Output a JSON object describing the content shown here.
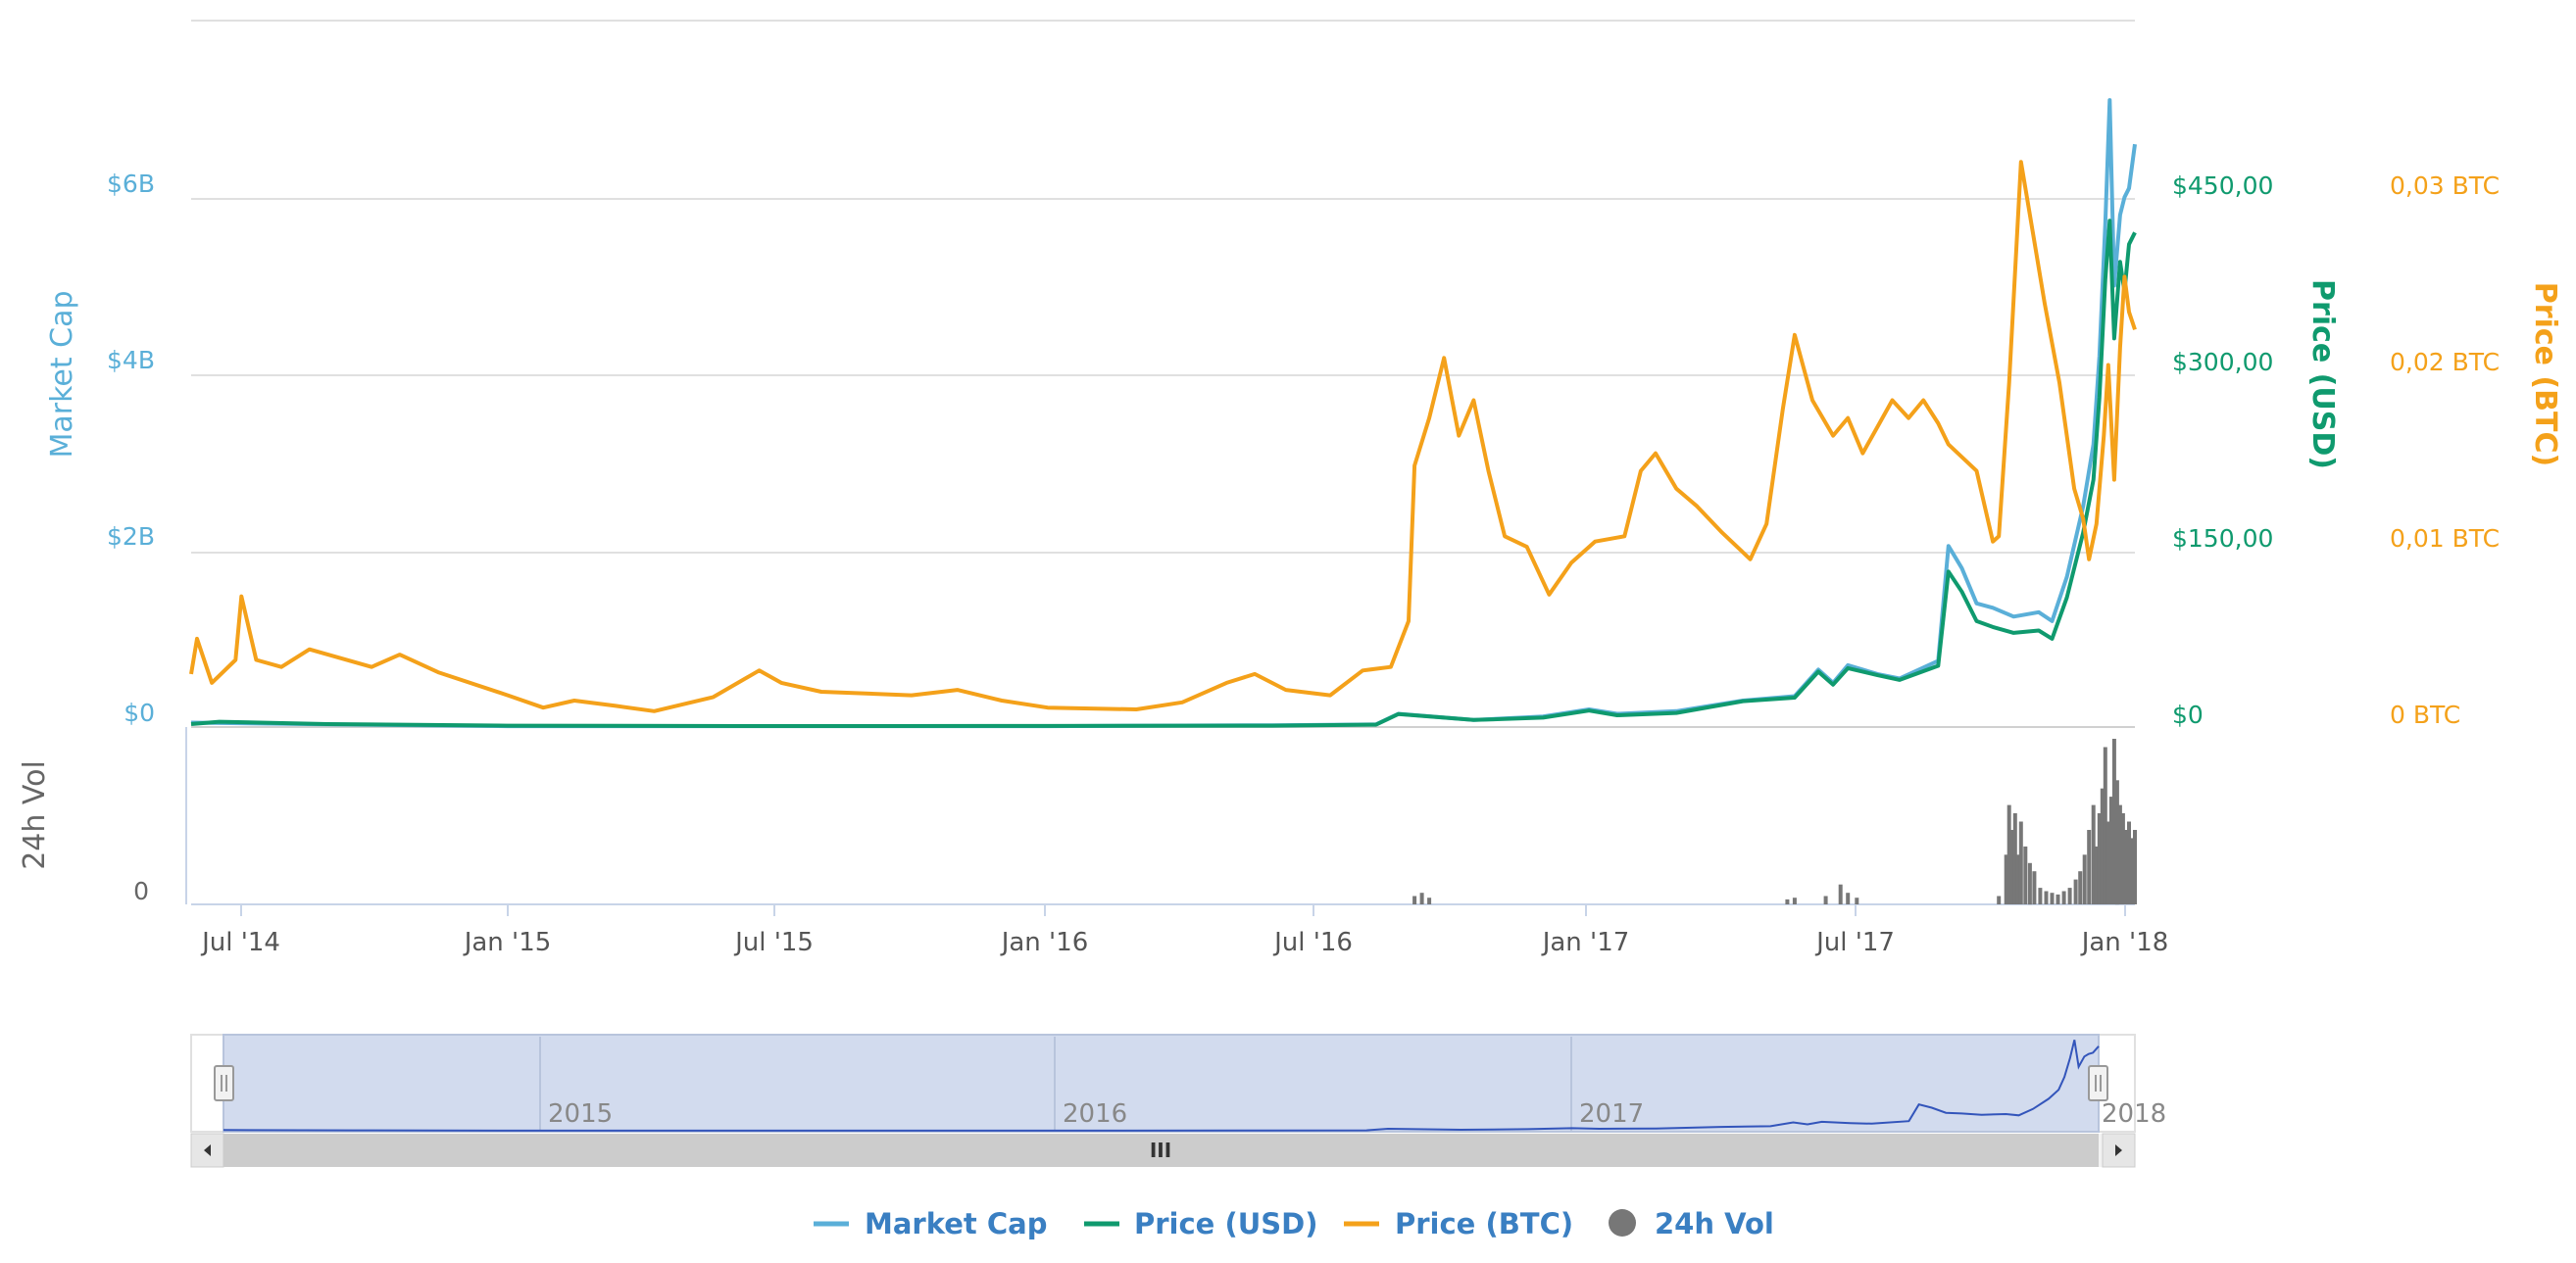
{
  "chart_data": {
    "type": "line",
    "xlabel": "",
    "x_range": [
      "2014-06-01",
      "2018-01-05"
    ],
    "x_ticks": [
      "Jul '14",
      "Jan '15",
      "Jul '15",
      "Jan '16",
      "Jul '16",
      "Jan '17",
      "Jul '17",
      "Jan '18"
    ],
    "navigator_years": [
      "2015",
      "2016",
      "2017",
      "2018"
    ],
    "axes": {
      "market_cap": {
        "title": "Market Cap",
        "ticks": [
          "$0",
          "$2B",
          "$4B",
          "$6B"
        ],
        "range": [
          0,
          8000000000
        ],
        "color": "#5aafd8"
      },
      "price_usd": {
        "title": "Price (USD)",
        "ticks": [
          "$0",
          "$150,00",
          "$300,00",
          "$450,00"
        ],
        "range": [
          0,
          600
        ],
        "color": "#0f9a6e"
      },
      "price_btc": {
        "title": "Price (BTC)",
        "ticks": [
          "0 BTC",
          "0,01 BTC",
          "0,02 BTC",
          "0,03 BTC"
        ],
        "range": [
          0,
          0.04
        ],
        "color": "#f4a11a"
      },
      "volume": {
        "title": "24h Vol",
        "ticks": [
          "0"
        ]
      }
    },
    "series": [
      {
        "name": "Market Cap",
        "axis": "market_cap",
        "color": "#5aafd8",
        "points": [
          [
            "2014-06-01",
            50000000.0
          ],
          [
            "2014-09-01",
            30000000.0
          ],
          [
            "2015-01-01",
            10000000.0
          ],
          [
            "2015-07-01",
            10000000.0
          ],
          [
            "2016-01-01",
            10000000.0
          ],
          [
            "2016-06-01",
            20000000.0
          ],
          [
            "2016-08-10",
            30000000.0
          ],
          [
            "2016-08-25",
            150000000.0
          ],
          [
            "2016-10-15",
            80000000.0
          ],
          [
            "2016-12-01",
            120000000.0
          ],
          [
            "2017-01-01",
            200000000.0
          ],
          [
            "2017-01-20",
            150000000.0
          ],
          [
            "2017-03-01",
            180000000.0
          ],
          [
            "2017-04-15",
            300000000.0
          ],
          [
            "2017-05-20",
            350000000.0
          ],
          [
            "2017-06-05",
            650000000.0
          ],
          [
            "2017-06-15",
            500000000.0
          ],
          [
            "2017-06-25",
            700000000.0
          ],
          [
            "2017-07-15",
            600000000.0
          ],
          [
            "2017-07-30",
            550000000.0
          ],
          [
            "2017-08-25",
            750000000.0
          ],
          [
            "2017-09-01",
            2050000000.0
          ],
          [
            "2017-09-10",
            1800000000.0
          ],
          [
            "2017-09-20",
            1400000000.0
          ],
          [
            "2017-10-01",
            1350000000.0
          ],
          [
            "2017-10-15",
            1250000000.0
          ],
          [
            "2017-11-01",
            1300000000.0
          ],
          [
            "2017-11-10",
            1200000000.0
          ],
          [
            "2017-11-20",
            1700000000.0
          ],
          [
            "2017-12-01",
            2500000000.0
          ],
          [
            "2017-12-08",
            3200000000.0
          ],
          [
            "2017-12-12",
            4200000000.0
          ],
          [
            "2017-12-16",
            5700000000.0
          ],
          [
            "2017-12-19",
            7100000000.0
          ],
          [
            "2017-12-22",
            5000000000.0
          ],
          [
            "2017-12-26",
            5800000000.0
          ],
          [
            "2017-12-29",
            6000000000.0
          ],
          [
            "2018-01-01",
            6100000000.0
          ],
          [
            "2018-01-05",
            6600000000.0
          ]
        ]
      },
      {
        "name": "Price (USD)",
        "axis": "price_usd",
        "color": "#0f9a6e",
        "points": [
          [
            "2014-06-01",
            2.5
          ],
          [
            "2014-06-20",
            4.5
          ],
          [
            "2014-09-01",
            2.5
          ],
          [
            "2015-01-01",
            1.2
          ],
          [
            "2015-07-01",
            0.8
          ],
          [
            "2016-01-01",
            0.9
          ],
          [
            "2016-06-01",
            1.2
          ],
          [
            "2016-08-10",
            2
          ],
          [
            "2016-08-25",
            11
          ],
          [
            "2016-10-15",
            6
          ],
          [
            "2016-12-01",
            8
          ],
          [
            "2017-01-01",
            14
          ],
          [
            "2017-01-20",
            10
          ],
          [
            "2017-03-01",
            12
          ],
          [
            "2017-04-15",
            22
          ],
          [
            "2017-05-20",
            25
          ],
          [
            "2017-06-05",
            47
          ],
          [
            "2017-06-15",
            36
          ],
          [
            "2017-06-25",
            50
          ],
          [
            "2017-07-15",
            44
          ],
          [
            "2017-07-30",
            40
          ],
          [
            "2017-08-25",
            52
          ],
          [
            "2017-09-01",
            132
          ],
          [
            "2017-09-10",
            115
          ],
          [
            "2017-09-20",
            90
          ],
          [
            "2017-10-01",
            85
          ],
          [
            "2017-10-15",
            80
          ],
          [
            "2017-11-01",
            82
          ],
          [
            "2017-11-10",
            75
          ],
          [
            "2017-11-20",
            110
          ],
          [
            "2017-12-01",
            165
          ],
          [
            "2017-12-08",
            210
          ],
          [
            "2017-12-12",
            280
          ],
          [
            "2017-12-16",
            380
          ],
          [
            "2017-12-19",
            430
          ],
          [
            "2017-12-22",
            330
          ],
          [
            "2017-12-26",
            395
          ],
          [
            "2017-12-29",
            370
          ],
          [
            "2018-01-01",
            410
          ],
          [
            "2018-01-05",
            420
          ]
        ]
      },
      {
        "name": "Price (BTC)",
        "axis": "price_btc",
        "color": "#f4a11a",
        "points": [
          [
            "2014-06-01",
            0.003
          ],
          [
            "2014-06-05",
            0.005
          ],
          [
            "2014-06-15",
            0.0025
          ],
          [
            "2014-07-01",
            0.0038
          ],
          [
            "2014-07-05",
            0.0074
          ],
          [
            "2014-07-15",
            0.0038
          ],
          [
            "2014-08-01",
            0.0034
          ],
          [
            "2014-08-20",
            0.0044
          ],
          [
            "2014-10-01",
            0.0034
          ],
          [
            "2014-10-20",
            0.0041
          ],
          [
            "2014-11-15",
            0.0031
          ],
          [
            "2015-01-01",
            0.0018
          ],
          [
            "2015-01-25",
            0.0011
          ],
          [
            "2015-02-15",
            0.0015
          ],
          [
            "2015-03-15",
            0.0012
          ],
          [
            "2015-04-10",
            0.0009
          ],
          [
            "2015-05-20",
            0.0017
          ],
          [
            "2015-06-20",
            0.0032
          ],
          [
            "2015-07-05",
            0.0025
          ],
          [
            "2015-08-01",
            0.002
          ],
          [
            "2015-10-01",
            0.0018
          ],
          [
            "2015-11-01",
            0.0021
          ],
          [
            "2015-12-01",
            0.0015
          ],
          [
            "2016-01-01",
            0.0011
          ],
          [
            "2016-03-01",
            0.001
          ],
          [
            "2016-04-01",
            0.0014
          ],
          [
            "2016-05-01",
            0.0025
          ],
          [
            "2016-05-20",
            0.003
          ],
          [
            "2016-06-10",
            0.0021
          ],
          [
            "2016-07-10",
            0.0018
          ],
          [
            "2016-08-01",
            0.0032
          ],
          [
            "2016-08-20",
            0.0034
          ],
          [
            "2016-09-01",
            0.006
          ],
          [
            "2016-09-05",
            0.0148
          ],
          [
            "2016-09-15",
            0.0175
          ],
          [
            "2016-09-25",
            0.0209
          ],
          [
            "2016-10-05",
            0.0165
          ],
          [
            "2016-10-15",
            0.0185
          ],
          [
            "2016-10-25",
            0.0145
          ],
          [
            "2016-11-05",
            0.0108
          ],
          [
            "2016-11-20",
            0.0102
          ],
          [
            "2016-12-05",
            0.0075
          ],
          [
            "2016-12-20",
            0.0093
          ],
          [
            "2017-01-05",
            0.0105
          ],
          [
            "2017-01-25",
            0.0108
          ],
          [
            "2017-02-05",
            0.0145
          ],
          [
            "2017-02-15",
            0.0155
          ],
          [
            "2017-03-01",
            0.0135
          ],
          [
            "2017-03-15",
            0.0125
          ],
          [
            "2017-04-01",
            0.011
          ],
          [
            "2017-04-20",
            0.0095
          ],
          [
            "2017-05-01",
            0.0115
          ],
          [
            "2017-05-12",
            0.018
          ],
          [
            "2017-05-20",
            0.0222
          ],
          [
            "2017-06-01",
            0.0185
          ],
          [
            "2017-06-15",
            0.0165
          ],
          [
            "2017-06-25",
            0.0175
          ],
          [
            "2017-07-05",
            0.0155
          ],
          [
            "2017-07-15",
            0.017
          ],
          [
            "2017-07-25",
            0.0185
          ],
          [
            "2017-08-05",
            0.0175
          ],
          [
            "2017-08-15",
            0.0185
          ],
          [
            "2017-08-25",
            0.0172
          ],
          [
            "2017-09-01",
            0.016
          ],
          [
            "2017-09-20",
            0.0145
          ],
          [
            "2017-10-01",
            0.0105
          ],
          [
            "2017-10-05",
            0.0108
          ],
          [
            "2017-10-12",
            0.0195
          ],
          [
            "2017-10-20",
            0.032
          ],
          [
            "2017-10-28",
            0.028
          ],
          [
            "2017-11-05",
            0.024
          ],
          [
            "2017-11-15",
            0.0195
          ],
          [
            "2017-11-25",
            0.0135
          ],
          [
            "2017-12-01",
            0.0118
          ],
          [
            "2017-12-05",
            0.0095
          ],
          [
            "2017-12-10",
            0.0115
          ],
          [
            "2017-12-15",
            0.0165
          ],
          [
            "2017-12-18",
            0.0205
          ],
          [
            "2017-12-22",
            0.014
          ],
          [
            "2017-12-26",
            0.0215
          ],
          [
            "2017-12-29",
            0.0255
          ],
          [
            "2018-01-01",
            0.0235
          ],
          [
            "2018-01-05",
            0.0225
          ]
        ]
      }
    ],
    "volume": {
      "name": "24h Vol",
      "color": "#777777",
      "range": [
        0,
        1.0
      ],
      "bars": [
        [
          "2016-09-05",
          0.05
        ],
        [
          "2016-09-10",
          0.07
        ],
        [
          "2016-09-15",
          0.04
        ],
        [
          "2017-05-15",
          0.03
        ],
        [
          "2017-05-20",
          0.04
        ],
        [
          "2017-06-10",
          0.05
        ],
        [
          "2017-06-20",
          0.12
        ],
        [
          "2017-06-25",
          0.07
        ],
        [
          "2017-07-01",
          0.04
        ],
        [
          "2017-10-05",
          0.05
        ],
        [
          "2017-10-10",
          0.3
        ],
        [
          "2017-10-12",
          0.6
        ],
        [
          "2017-10-14",
          0.45
        ],
        [
          "2017-10-16",
          0.55
        ],
        [
          "2017-10-18",
          0.3
        ],
        [
          "2017-10-20",
          0.5
        ],
        [
          "2017-10-23",
          0.35
        ],
        [
          "2017-10-26",
          0.25
        ],
        [
          "2017-10-29",
          0.2
        ],
        [
          "2017-11-02",
          0.1
        ],
        [
          "2017-11-06",
          0.08
        ],
        [
          "2017-11-10",
          0.07
        ],
        [
          "2017-11-14",
          0.06
        ],
        [
          "2017-11-18",
          0.08
        ],
        [
          "2017-11-22",
          0.1
        ],
        [
          "2017-11-26",
          0.15
        ],
        [
          "2017-11-29",
          0.2
        ],
        [
          "2017-12-02",
          0.3
        ],
        [
          "2017-12-05",
          0.45
        ],
        [
          "2017-12-08",
          0.6
        ],
        [
          "2017-12-10",
          0.35
        ],
        [
          "2017-12-12",
          0.55
        ],
        [
          "2017-12-14",
          0.7
        ],
        [
          "2017-12-16",
          0.95
        ],
        [
          "2017-12-18",
          0.5
        ],
        [
          "2017-12-20",
          0.65
        ],
        [
          "2017-12-22",
          1.0
        ],
        [
          "2017-12-24",
          0.75
        ],
        [
          "2017-12-26",
          0.6
        ],
        [
          "2017-12-28",
          0.55
        ],
        [
          "2017-12-30",
          0.45
        ],
        [
          "2018-01-01",
          0.5
        ],
        [
          "2018-01-03",
          0.4
        ],
        [
          "2018-01-05",
          0.45
        ]
      ]
    },
    "legend": {
      "placement": "bottom-center",
      "items": [
        {
          "label": "Market Cap",
          "color": "#5aafd8",
          "symbol": "line"
        },
        {
          "label": "Price (USD)",
          "color": "#0f9a6e",
          "symbol": "line"
        },
        {
          "label": "Price (BTC)",
          "color": "#f4a11a",
          "symbol": "line"
        },
        {
          "label": "24h Vol",
          "color": "#777777",
          "symbol": "circle"
        }
      ]
    },
    "grid": true
  },
  "navigator": {
    "scroll_grip": "III"
  }
}
